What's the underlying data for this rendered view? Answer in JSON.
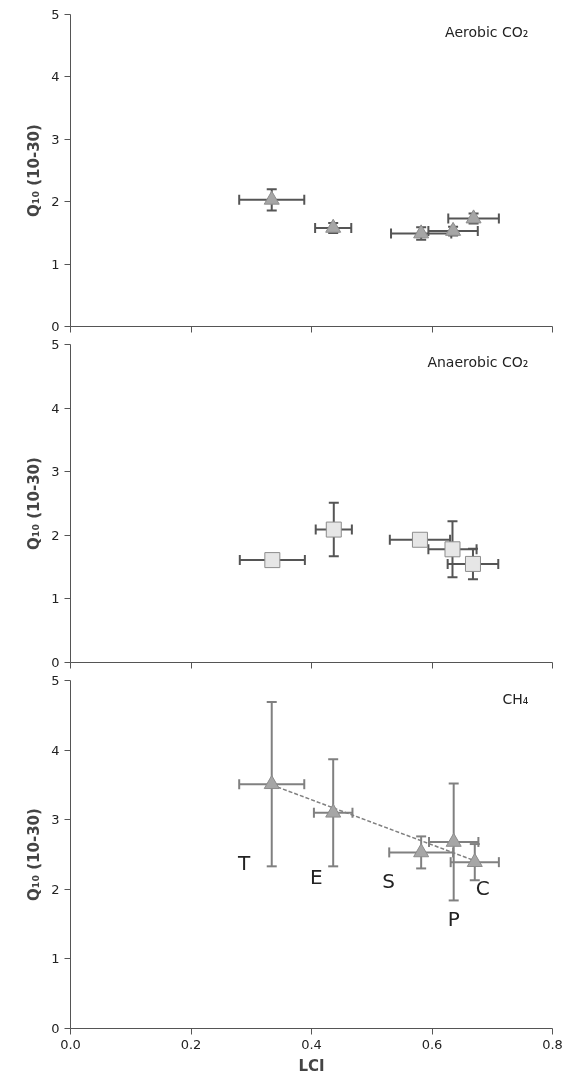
{
  "chart_data": [
    {
      "type": "scatter",
      "title": "Aerobic CO₂",
      "ylabel": "Q₁₀ (10-30)",
      "xlim": [
        0,
        0.8
      ],
      "xticks": [
        {
          "value": 0,
          "label": null
        },
        {
          "value": 0.2,
          "label": null
        },
        {
          "value": 0.4,
          "label": null
        },
        {
          "value": 0.6,
          "label": null
        },
        {
          "value": 0.8,
          "label": null
        }
      ],
      "ylim": [
        0,
        5
      ],
      "yticks": [
        0,
        1,
        2,
        3,
        4,
        5
      ],
      "tick_labels": "y",
      "grid": false,
      "series": [
        {
          "color": "#a6a6a6",
          "marker": "triangle",
          "x": [
            0.334,
            0.436,
            0.582,
            0.635,
            0.669
          ],
          "values": [
            2.03,
            1.58,
            1.49,
            1.53,
            1.73
          ],
          "errors": [
            0.17,
            0.08,
            0.1,
            0.07,
            0.08
          ],
          "xerrors": [
            0.054,
            0.03,
            0.05,
            0.041,
            0.042
          ]
        }
      ]
    },
    {
      "type": "scatter",
      "title": "Anaerobic CO₂",
      "ylabel": "Q₁₀ (10-30)",
      "xlim": [
        0,
        0.8
      ],
      "xticks": [
        {
          "value": 0,
          "label": null
        },
        {
          "value": 0.2,
          "label": null
        },
        {
          "value": 0.4,
          "label": null
        },
        {
          "value": 0.6,
          "label": null
        },
        {
          "value": 0.8,
          "label": null
        }
      ],
      "ylim": [
        0,
        5
      ],
      "yticks": [
        0,
        1,
        2,
        3,
        4,
        5
      ],
      "tick_labels": "y",
      "grid": false,
      "series": [
        {
          "color": "#e6e6e6",
          "marker": "square",
          "x": [
            0.335,
            0.437,
            0.58,
            0.634,
            0.668
          ],
          "values": [
            1.61,
            2.09,
            1.93,
            1.78,
            1.55
          ],
          "errors": [
            0.08,
            0.42,
            null,
            0.44,
            0.24
          ],
          "xerrors": [
            0.054,
            0.03,
            0.05,
            0.04,
            0.042
          ]
        }
      ]
    },
    {
      "type": "scatter",
      "title": "CH₄",
      "xlabel": "LCI",
      "ylabel": "Q₁₀ (10-30)",
      "xlim": [
        0,
        0.8
      ],
      "xticks": [
        {
          "value": 0,
          "label": "0.0"
        },
        0.2,
        0.4,
        0.6,
        0.8
      ],
      "ylim": [
        0,
        5
      ],
      "yticks": [
        0,
        1,
        2,
        3,
        4,
        5
      ],
      "grid": false,
      "series": [
        {
          "type": "line",
          "color": "#808080",
          "line_style": "dashed",
          "marker": "none",
          "x": [
            0.334,
            0.671
          ],
          "values": [
            3.5,
            2.41
          ]
        },
        {
          "color": "#a6a6a6",
          "marker": "triangle",
          "x": [
            0.334,
            0.436,
            0.582,
            0.636,
            0.671
          ],
          "values": [
            3.51,
            3.1,
            2.53,
            2.68,
            2.39
          ],
          "errors": [
            1.18,
            0.77,
            0.23,
            0.84,
            0.26
          ],
          "xerrors": [
            0.054,
            0.032,
            0.053,
            0.041,
            0.04
          ]
        }
      ],
      "annotations": [
        "T",
        "E",
        "S",
        "P",
        "C"
      ]
    }
  ]
}
